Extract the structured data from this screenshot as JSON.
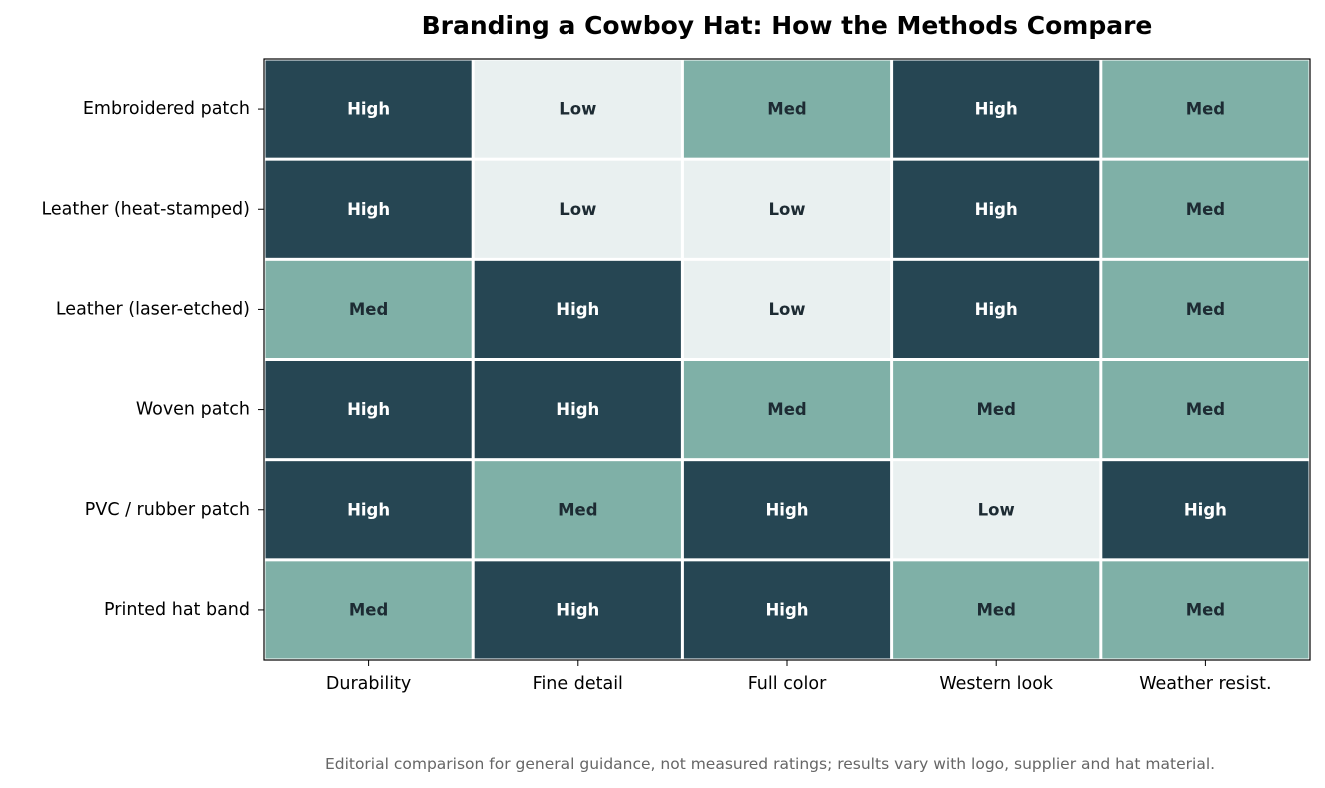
{
  "colors": {
    "High": "#264653",
    "Med": "#7fb0a7",
    "Low": "#e9f0f0",
    "text_on_dark": "#ffffff",
    "text_on_light": "#1d2b33"
  },
  "chart_data": {
    "type": "heatmap",
    "title": "Branding a Cowboy Hat: How the Methods Compare",
    "footnote": "Editorial comparison for general guidance, not measured ratings; results vary with logo, supplier and hat material.",
    "columns": [
      "Durability",
      "Fine detail",
      "Full color",
      "Western look",
      "Weather resist."
    ],
    "rows": [
      "Embroidered patch",
      "Leather (heat-stamped)",
      "Leather (laser-etched)",
      "Woven patch",
      "PVC / rubber patch",
      "Printed hat band"
    ],
    "values": [
      [
        "High",
        "Low",
        "Med",
        "High",
        "Med"
      ],
      [
        "High",
        "Low",
        "Low",
        "High",
        "Med"
      ],
      [
        "Med",
        "High",
        "Low",
        "High",
        "Med"
      ],
      [
        "High",
        "High",
        "Med",
        "Med",
        "Med"
      ],
      [
        "High",
        "Med",
        "High",
        "Low",
        "High"
      ],
      [
        "Med",
        "High",
        "High",
        "Med",
        "Med"
      ]
    ],
    "scale": [
      "Low",
      "Med",
      "High"
    ],
    "legend": "none",
    "grid": false
  }
}
